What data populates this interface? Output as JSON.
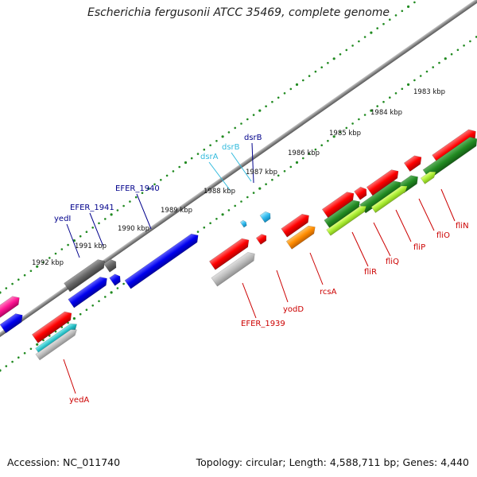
{
  "title": "Escherichia fergusonii ATCC 35469, complete genome",
  "footer": {
    "accession": "Accession: NC_011740",
    "topology": "Topology: circular; Length: 4,588,711 bp; Genes: 4,440"
  },
  "colors": {
    "forward_label": "#00008b",
    "forward_label_light": "#33bbdd",
    "reverse_label": "#cc0000",
    "backbone": "#808080",
    "tick_marks": "#228b22"
  },
  "kbp_ticks": [
    "1983 kbp",
    "1984 kbp",
    "1985 kbp",
    "1986 kbp",
    "1987 kbp",
    "1988 kbp",
    "1989 kbp",
    "1990 kbp",
    "1991 kbp",
    "1992 kbp"
  ],
  "gene_labels_forward": [
    "yedI",
    "EFER_1941",
    "EFER_1940",
    "dsrA",
    "dsrB",
    "dsrB"
  ],
  "gene_labels_reverse": [
    "yedA",
    "EFER_1939",
    "yodD",
    "rcsA",
    "fliR",
    "fliQ",
    "fliP",
    "fliO",
    "fliN"
  ]
}
